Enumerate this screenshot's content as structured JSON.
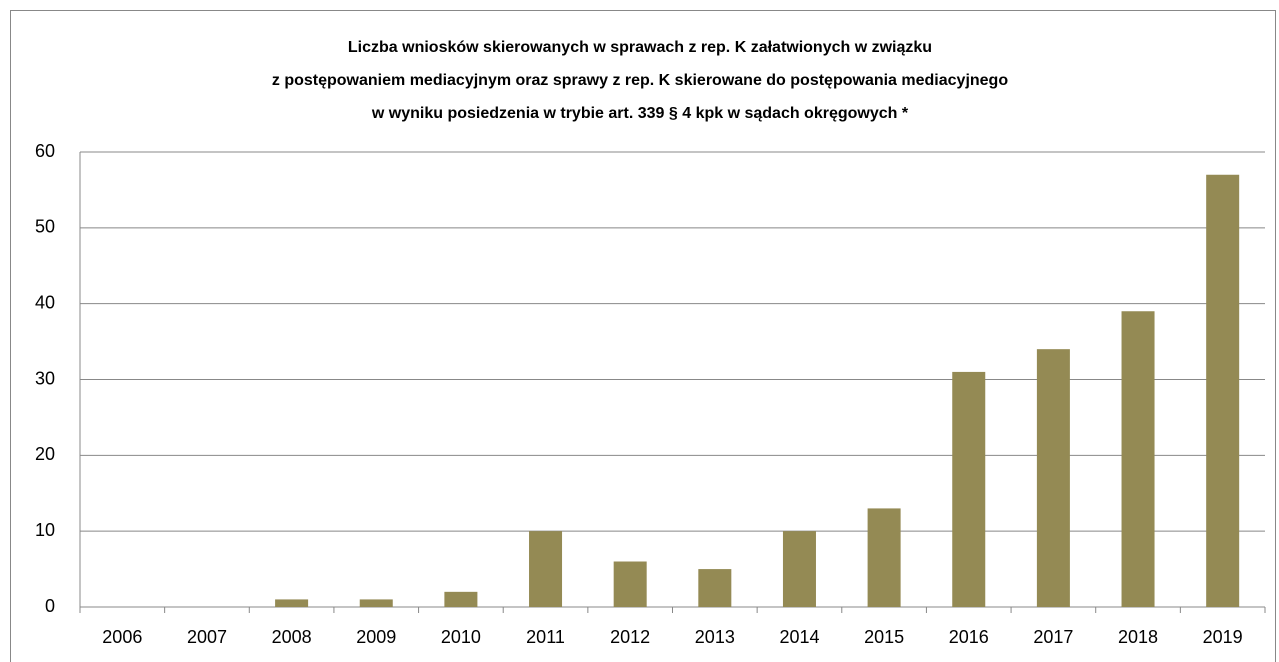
{
  "chart_data": {
    "type": "bar",
    "title": [
      "Liczba wniosków skierowanych w sprawach z rep. K załatwionych w związku",
      "z postępowaniem mediacyjnym oraz sprawy z rep. K skierowane do postępowania mediacyjnego",
      "w wyniku posiedzenia w trybie art. 339 § 4 kpk w sądach okręgowych *"
    ],
    "categories": [
      "2006",
      "2007",
      "2008",
      "2009",
      "2010",
      "2011",
      "2012",
      "2013",
      "2014",
      "2015",
      "2016",
      "2017",
      "2018",
      "2019"
    ],
    "values": [
      0,
      0,
      1,
      1,
      2,
      10,
      6,
      5,
      10,
      13,
      31,
      34,
      39,
      57
    ],
    "color": "#948a54",
    "ylim": [
      0,
      60
    ],
    "yticks": [
      0,
      10,
      20,
      30,
      40,
      50,
      60
    ],
    "grid": true
  }
}
